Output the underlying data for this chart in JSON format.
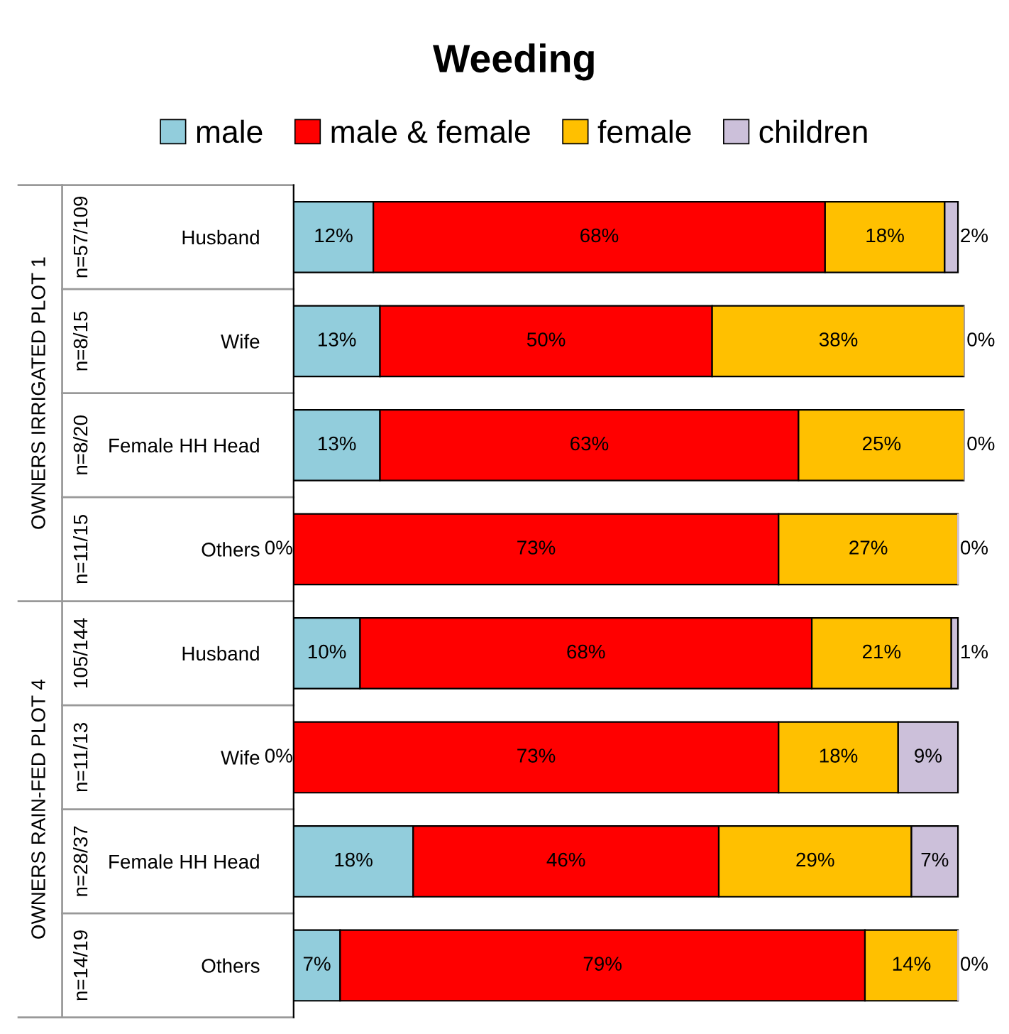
{
  "chart_data": {
    "type": "bar",
    "orientation": "horizontal",
    "stacked": true,
    "title": "Weeding",
    "categories": [
      "Husband",
      "Wife",
      "Female HH Head",
      "Others",
      "Husband",
      "Wife",
      "Female HH Head",
      "Others"
    ],
    "series": [
      {
        "name": "male",
        "color": "#92cddc",
        "values": [
          12,
          13,
          13,
          0,
          10,
          0,
          18,
          7
        ],
        "value_labels": [
          "12%",
          "13%",
          "13%",
          "0%",
          "10%",
          "0%",
          "18%",
          "7%"
        ]
      },
      {
        "name": "male & female",
        "color": "#ff0000",
        "values": [
          68,
          50,
          63,
          73,
          68,
          73,
          46,
          79
        ],
        "value_labels": [
          "68%",
          "50%",
          "63%",
          "73%",
          "68%",
          "73%",
          "46%",
          "79%"
        ]
      },
      {
        "name": "female",
        "color": "#ffc000",
        "values": [
          18,
          38,
          25,
          27,
          21,
          18,
          29,
          14
        ],
        "value_labels": [
          "18%",
          "38%",
          "25%",
          "27%",
          "21%",
          "18%",
          "29%",
          "14%"
        ]
      },
      {
        "name": "children",
        "color": "#ccc0da",
        "values": [
          2,
          0,
          0,
          0,
          1,
          9,
          7,
          0
        ],
        "value_labels": [
          "2%",
          "0%",
          "0%",
          "0%",
          "1%",
          "9%",
          "7%",
          "0%"
        ]
      }
    ],
    "annotations": [
      "n=57/109",
      "n=8/15",
      "n=8/20",
      "n=11/15",
      "105/144",
      "n=11/13",
      "n=28/37",
      "n=14/19",
      "OWNERS IRRIGATED PLOT 1",
      "OWNERS RAIN-FED PLOT 4"
    ],
    "legend": "top",
    "tick_labels": "y"
  }
}
